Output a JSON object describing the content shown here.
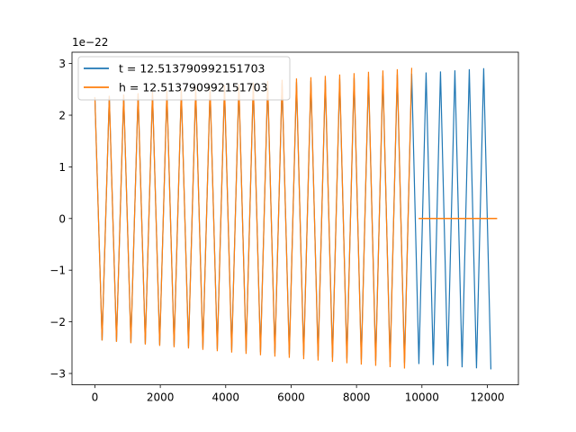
{
  "chart_data": {
    "type": "line",
    "x_ticks": [
      0,
      2000,
      4000,
      6000,
      8000,
      10000,
      12000
    ],
    "y_ticks": [
      -3,
      -2,
      -1,
      0,
      1,
      2,
      3
    ],
    "x_tick_labels": [
      "0",
      "2000",
      "4000",
      "6000",
      "8000",
      "10000",
      "12000"
    ],
    "y_tick_labels": [
      "−3",
      "−2",
      "−1",
      "0",
      "1",
      "2",
      "3"
    ],
    "y_offset_label": "1e−22",
    "xlim": [
      -700,
      12950
    ],
    "ylim": [
      -3.22,
      3.22
    ],
    "grid": false,
    "legend_position": "top-left",
    "series": [
      {
        "name": "t = 12.513790992151703",
        "color": "#1f77b4",
        "x_end": 12300,
        "amplitude_start": 2.35,
        "amplitude_end": 2.93,
        "tail": null
      },
      {
        "name": "h = 12.513790992151703",
        "color": "#ff7f0e",
        "x_end": 9900,
        "amplitude_start": 2.35,
        "amplitude_end": 2.93,
        "tail": {
          "x_start": 9900,
          "x_end": 12300,
          "value": 0
        }
      }
    ]
  }
}
